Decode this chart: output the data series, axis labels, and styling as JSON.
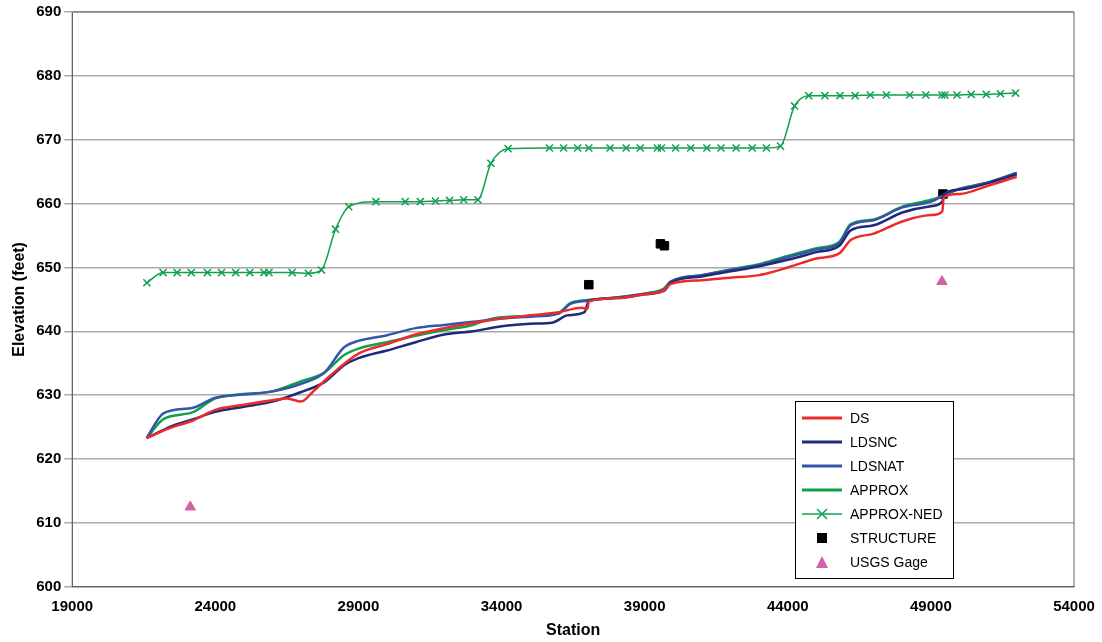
{
  "chart_data": {
    "type": "line",
    "xlabel": "Station",
    "ylabel": "Elevation (feet)",
    "xlim": [
      19000,
      54000
    ],
    "xticks": [
      19000,
      24000,
      29000,
      34000,
      39000,
      44000,
      49000,
      54000
    ],
    "ylim": [
      600,
      690
    ],
    "yticks": [
      600,
      610,
      620,
      630,
      640,
      650,
      660,
      670,
      680,
      690
    ],
    "grid": "y",
    "legend": "bottom right",
    "line_style": "solid",
    "series": [
      {
        "name": "DS",
        "color": "#ee2b2b",
        "marker": "none",
        "x": [
          21600,
          22500,
          23200,
          24000,
          25000,
          26000,
          26500,
          27000,
          27400,
          28000,
          29000,
          30000,
          31000,
          32000,
          33000,
          34000,
          35000,
          36000,
          36800,
          37000,
          37050,
          38000,
          39000,
          39700,
          39900,
          41000,
          42000,
          43000,
          44000,
          45000,
          45800,
          46200,
          47000,
          48000,
          49000,
          49400,
          49450,
          50000,
          51000,
          52000
        ],
        "values": [
          623.3,
          625,
          626,
          627.7,
          628.5,
          629.2,
          629.5,
          629,
          630.5,
          633,
          636.5,
          638,
          639.5,
          640.5,
          641.3,
          642,
          642.5,
          643,
          643.7,
          643.5,
          644.7,
          645.2,
          645.8,
          646.5,
          647.4,
          648,
          648.4,
          648.8,
          650,
          651.4,
          652.2,
          654.3,
          655.3,
          657.2,
          658.2,
          658.8,
          661,
          661.5,
          662.8,
          664.2
        ]
      },
      {
        "name": "LDSNC",
        "color": "#1f2a7a",
        "marker": "none",
        "x": [
          21600,
          22500,
          23200,
          24000,
          25000,
          26000,
          27000,
          27800,
          28500,
          29000,
          30000,
          31000,
          32000,
          33000,
          34000,
          35000,
          35800,
          36300,
          36900,
          37050,
          38000,
          39000,
          39700,
          39900,
          41000,
          42000,
          43000,
          44000,
          45000,
          45800,
          46200,
          47000,
          48000,
          49000,
          49400,
          49450,
          50000,
          51000,
          52000
        ],
        "values": [
          623.3,
          625.2,
          626.2,
          627.4,
          628.2,
          629,
          630.5,
          632,
          634.7,
          635.8,
          637,
          638.3,
          639.5,
          640,
          640.8,
          641.2,
          641.4,
          642.5,
          643,
          644.8,
          645.2,
          645.8,
          646.4,
          647.6,
          648.6,
          649.4,
          650.2,
          651.2,
          652.4,
          653.4,
          655.8,
          656.6,
          658.6,
          659.6,
          660.3,
          661.5,
          662.2,
          663.2,
          664.6
        ]
      },
      {
        "name": "LDSNAT",
        "color": "#3355aa",
        "marker": "none",
        "x": [
          21600,
          22200,
          23200,
          24000,
          25000,
          26000,
          27000,
          27800,
          28500,
          29000,
          30000,
          31000,
          32000,
          33000,
          34000,
          35000,
          36000,
          36400,
          37000,
          38000,
          39000,
          39700,
          39900,
          41000,
          42000,
          43000,
          44000,
          45000,
          45800,
          46200,
          47000,
          48000,
          49000,
          49450,
          50000,
          51000,
          52000
        ],
        "values": [
          623.3,
          627.2,
          628,
          629.6,
          630.1,
          630.6,
          631.8,
          633.5,
          637.5,
          638.5,
          639.4,
          640.5,
          641,
          641.5,
          642,
          642.3,
          642.8,
          644.3,
          644.8,
          645.3,
          645.9,
          646.6,
          647.7,
          648.8,
          649.6,
          650.4,
          651.6,
          652.8,
          653.8,
          656.6,
          657.4,
          659.4,
          660.3,
          661.3,
          662.3,
          663.3,
          664.8
        ]
      },
      {
        "name": "APPROX",
        "color": "#10a04a",
        "marker": "none",
        "x": [
          21600,
          22200,
          23200,
          24000,
          25000,
          26000,
          27000,
          27800,
          28500,
          29000,
          30000,
          31000,
          32000,
          33000,
          33500,
          34000,
          35000,
          36000,
          36400,
          37000,
          38000,
          39000,
          39700,
          39900,
          41000,
          42000,
          43000,
          44000,
          45000,
          45800,
          46200,
          47000,
          48000,
          49000,
          49450,
          50000,
          51000,
          52000
        ],
        "values": [
          623.3,
          626.3,
          627.3,
          629.5,
          630.2,
          630.6,
          632.2,
          633.5,
          636.3,
          637.3,
          638.3,
          639.3,
          640.2,
          641,
          641.8,
          642.2,
          642.4,
          642.9,
          644.4,
          644.9,
          645.3,
          645.9,
          646.8,
          647.8,
          648.8,
          649.7,
          650.5,
          651.8,
          653,
          654,
          656.8,
          657.5,
          659.5,
          660.6,
          661.3,
          662.3,
          663.3,
          664.8
        ]
      },
      {
        "name": "APPROX-NED",
        "color": "#12a050",
        "marker": "cross",
        "x": [
          21608,
          22173,
          22666,
          23160,
          23724,
          24217,
          24711,
          25204,
          25698,
          25874,
          26685,
          27249,
          27707,
          28200,
          28659,
          29610,
          30633,
          31161,
          31690,
          32184,
          32677,
          33171,
          33629,
          34228,
          35673,
          36167,
          36660,
          37048,
          37789,
          38353,
          38846,
          39445,
          39586,
          40080,
          40609,
          41173,
          41666,
          42195,
          42759,
          43252,
          43746,
          44239,
          44733,
          45297,
          45825,
          46354,
          46883,
          47447,
          48258,
          48822,
          49386,
          49492,
          49914,
          50408,
          50936,
          51430,
          51959
        ],
        "values": [
          647.6,
          649.2,
          649.2,
          649.2,
          649.2,
          649.2,
          649.2,
          649.2,
          649.2,
          649.2,
          649.2,
          649.1,
          649.6,
          656,
          659.5,
          660.3,
          660.3,
          660.3,
          660.4,
          660.5,
          660.6,
          660.6,
          666.3,
          668.6,
          668.7,
          668.7,
          668.7,
          668.7,
          668.7,
          668.7,
          668.7,
          668.7,
          668.7,
          668.7,
          668.7,
          668.7,
          668.7,
          668.7,
          668.7,
          668.7,
          669,
          675.3,
          676.9,
          676.9,
          676.9,
          676.9,
          677,
          677,
          677,
          677,
          677,
          677,
          677,
          677.1,
          677.1,
          677.2,
          677.3
        ]
      },
      {
        "name": "STRUCTURE",
        "type": "scatter",
        "color": "#000000",
        "marker": "square",
        "x": [
          37048,
          39550,
          39690,
          49420
        ],
        "values": [
          647.3,
          653.7,
          653.4,
          661.5
        ]
      },
      {
        "name": "USGS Gage",
        "type": "scatter",
        "color": "#d660a8",
        "marker": "triangle",
        "x": [
          23124,
          49386
        ],
        "values": [
          612.5,
          647.8
        ]
      }
    ]
  }
}
